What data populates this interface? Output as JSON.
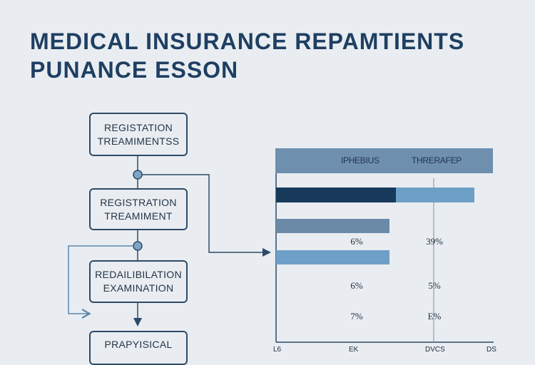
{
  "title": {
    "line1": "MEDICAL INSURANCE REPAMTIENTS",
    "line2": "PUNANCE ESSON"
  },
  "flowchart": {
    "boxes": [
      {
        "line1": "REGISTATION",
        "line2": "TREAMIMENTSS"
      },
      {
        "line1": "REGISTRATION",
        "line2": "TREAMIMENT"
      },
      {
        "line1": "REDAILIBILATION",
        "line2": "EXAMINATION"
      },
      {
        "line1": "PRAPYISICAL",
        "line2": ""
      }
    ]
  },
  "chart_data": {
    "type": "table",
    "header": [
      "IPHEBIUS",
      "THRERAFEP"
    ],
    "rows": [
      {
        "col1": "",
        "col2": ""
      },
      {
        "col1": "",
        "col2": ""
      },
      {
        "col1": "6%",
        "col2": "39%"
      },
      {
        "col1": "6%",
        "col2": "5%"
      },
      {
        "col1": "7%",
        "col2": "E%"
      }
    ],
    "bar_fractions": [
      0.55,
      0.52,
      0.52
    ],
    "secondary_bar_fraction": 0.36,
    "axis_labels": [
      "L6",
      "EK",
      "DVCS",
      "DS"
    ],
    "colors": {
      "header": "#6e8fae",
      "dark": "#173a5b",
      "light": "#6e9fc7",
      "mid": "#6a8aa8"
    }
  },
  "colors": {
    "background": "#e9edf1",
    "title": "#1f3f62",
    "box_border": "#2e4a66",
    "arrow": "#5b86ae"
  }
}
